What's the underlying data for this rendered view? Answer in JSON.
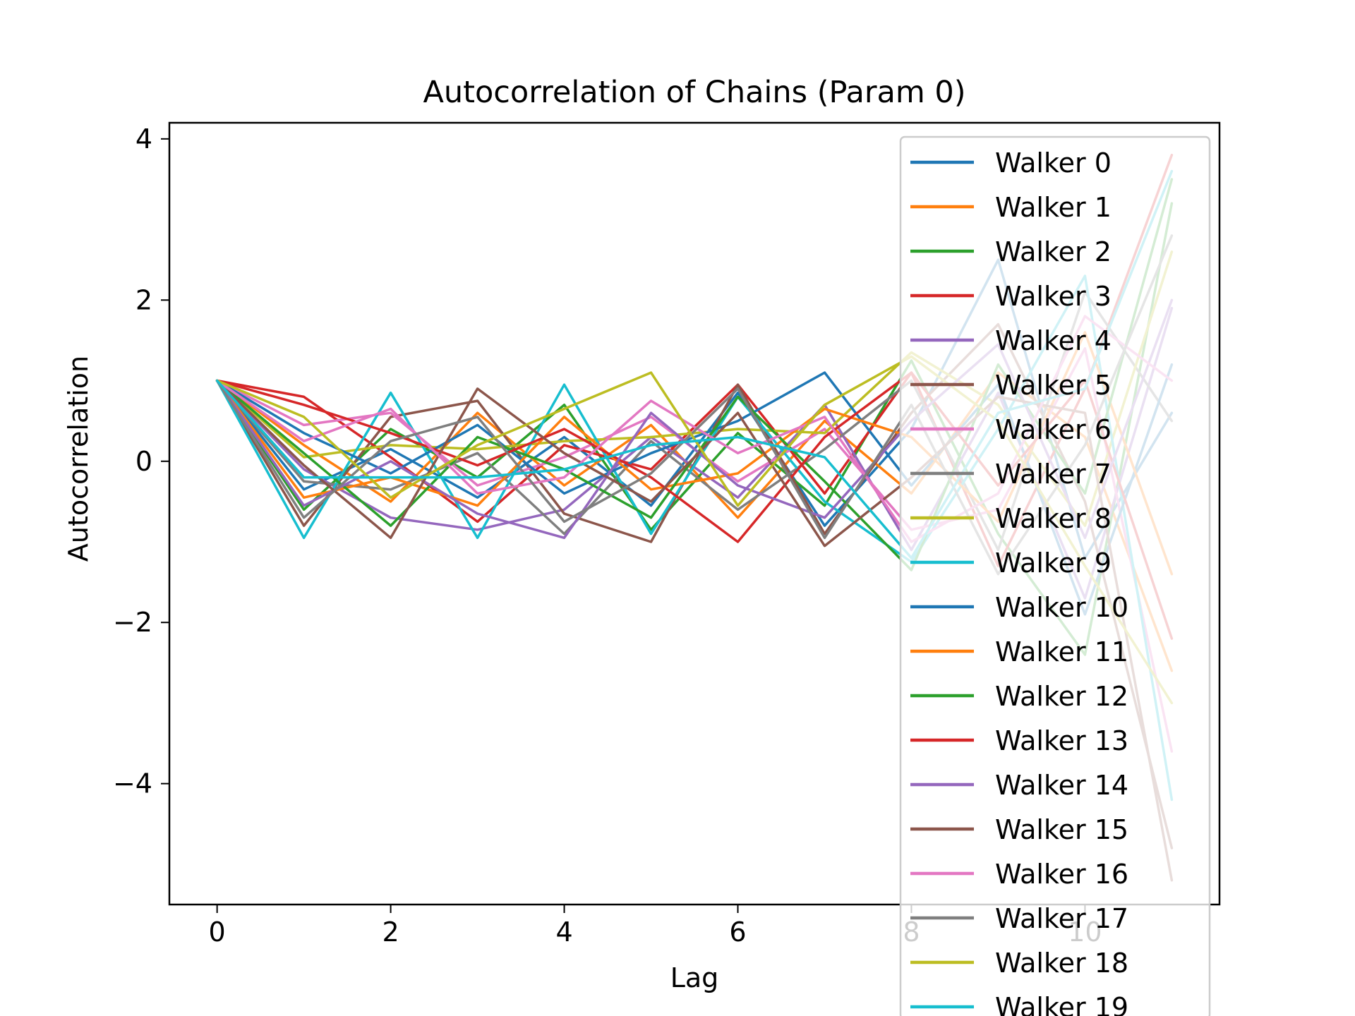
{
  "chart_data": {
    "type": "line",
    "title": "Autocorrelation of Chains (Param 0)",
    "xlabel": "Lag",
    "ylabel": "Autocorrelation",
    "xlim": [
      -0.55,
      11.55
    ],
    "ylim": [
      -5.5,
      4.2
    ],
    "x": [
      0,
      1,
      2,
      3,
      4,
      5,
      6,
      7,
      8,
      9,
      10,
      11
    ],
    "x_ticks": [
      0,
      2,
      4,
      6,
      8,
      10
    ],
    "y_ticks": [
      -4,
      -2,
      0,
      2,
      4
    ],
    "x_tick_labels": [
      "0",
      "2",
      "4",
      "6",
      "8",
      "10"
    ],
    "y_tick_labels": [
      "−4",
      "−2",
      "0",
      "2",
      "4"
    ],
    "grid": false,
    "legend_placement": "upper-right, extends below plot",
    "palette": [
      "#1f77b4",
      "#ff7f0e",
      "#2ca02c",
      "#d62728",
      "#9467bd",
      "#8c564b",
      "#e377c2",
      "#7f7f7f",
      "#bcbd22",
      "#17becf"
    ],
    "series": [
      {
        "name": "Walker 0",
        "color": "#1f77b4",
        "values": [
          1.0,
          -0.35,
          0.15,
          -0.45,
          0.3,
          -0.55,
          0.85,
          -0.8,
          0.4,
          2.5,
          -1.2,
          0.6
        ]
      },
      {
        "name": "Walker 1",
        "color": "#ff7f0e",
        "values": [
          1.0,
          0.2,
          -0.5,
          0.6,
          -0.3,
          0.45,
          -0.7,
          0.5,
          -0.4,
          1.1,
          0.3,
          -2.6
        ]
      },
      {
        "name": "Walker 2",
        "color": "#2ca02c",
        "values": [
          1.0,
          -0.6,
          0.4,
          -0.2,
          0.7,
          -0.85,
          0.35,
          -0.55,
          1.25,
          -0.9,
          -2.4,
          3.2
        ]
      },
      {
        "name": "Walker 3",
        "color": "#d62728",
        "values": [
          1.0,
          0.8,
          0.05,
          -0.75,
          0.2,
          -0.1,
          0.95,
          -0.4,
          1.1,
          -1.3,
          0.9,
          3.8
        ]
      },
      {
        "name": "Walker 4",
        "color": "#9467bd",
        "values": [
          1.0,
          -0.1,
          -0.7,
          -0.85,
          -0.6,
          0.3,
          -0.45,
          0.7,
          -1.1,
          0.85,
          -1.7,
          1.9
        ]
      },
      {
        "name": "Walker 5",
        "color": "#8c564b",
        "values": [
          1.0,
          -0.8,
          0.55,
          0.75,
          -0.65,
          -1.0,
          0.95,
          -0.9,
          0.6,
          1.7,
          -0.5,
          -4.8
        ]
      },
      {
        "name": "Walker 6",
        "color": "#e377c2",
        "values": [
          1.0,
          0.45,
          0.6,
          -0.3,
          0.05,
          0.55,
          -0.25,
          0.4,
          -0.85,
          -0.6,
          1.4,
          -3.6
        ]
      },
      {
        "name": "Walker 7",
        "color": "#7f7f7f",
        "values": [
          1.0,
          -0.25,
          -0.35,
          0.1,
          -0.9,
          0.25,
          -0.6,
          0.15,
          1.0,
          -1.1,
          2.1,
          0.5
        ]
      },
      {
        "name": "Walker 8",
        "color": "#bcbd22",
        "values": [
          1.0,
          0.05,
          0.2,
          0.15,
          0.25,
          0.3,
          0.4,
          0.35,
          1.35,
          0.7,
          -0.8,
          2.6
        ]
      },
      {
        "name": "Walker 9",
        "color": "#17becf",
        "values": [
          1.0,
          -0.95,
          0.85,
          -0.95,
          0.95,
          -0.9,
          0.8,
          -0.5,
          -1.25,
          0.4,
          2.3,
          -4.2
        ]
      },
      {
        "name": "Walker 10",
        "color": "#1f77b4",
        "values": [
          1.0,
          0.35,
          -0.15,
          0.45,
          -0.4,
          0.1,
          0.5,
          1.1,
          -0.3,
          0.95,
          -1.9,
          1.2
        ]
      },
      {
        "name": "Walker 11",
        "color": "#ff7f0e",
        "values": [
          1.0,
          -0.45,
          -0.2,
          -0.55,
          0.55,
          -0.35,
          -0.15,
          0.65,
          0.3,
          -0.75,
          1.6,
          -1.4
        ]
      },
      {
        "name": "Walker 12",
        "color": "#2ca02c",
        "values": [
          1.0,
          0.1,
          -0.8,
          0.3,
          -0.1,
          -0.7,
          0.8,
          -0.25,
          -1.35,
          1.2,
          -0.4,
          3.5
        ]
      },
      {
        "name": "Walker 13",
        "color": "#d62728",
        "values": [
          1.0,
          0.7,
          0.35,
          -0.05,
          0.4,
          -0.2,
          -1.0,
          0.3,
          1.1,
          -0.3,
          1.0,
          -2.2
        ]
      },
      {
        "name": "Walker 14",
        "color": "#9467bd",
        "values": [
          1.0,
          -0.55,
          0.0,
          -0.65,
          -0.95,
          0.6,
          -0.3,
          -0.7,
          0.5,
          1.45,
          -0.95,
          2.0
        ]
      },
      {
        "name": "Walker 15",
        "color": "#8c564b",
        "values": [
          1.0,
          -0.05,
          -0.95,
          0.9,
          0.1,
          -0.5,
          0.6,
          -1.05,
          -0.2,
          0.8,
          0.6,
          -5.2
        ]
      },
      {
        "name": "Walker 16",
        "color": "#e377c2",
        "values": [
          1.0,
          0.25,
          0.65,
          -0.4,
          -0.2,
          0.75,
          0.1,
          0.55,
          -1.0,
          -0.4,
          1.8,
          1.0
        ]
      },
      {
        "name": "Walker 17",
        "color": "#7f7f7f",
        "values": [
          1.0,
          -0.7,
          0.25,
          0.55,
          -0.75,
          -0.15,
          0.9,
          -0.95,
          0.7,
          -1.4,
          0.2,
          2.8
        ]
      },
      {
        "name": "Walker 18",
        "color": "#bcbd22",
        "values": [
          1.0,
          0.55,
          -0.45,
          0.2,
          0.65,
          1.1,
          -0.55,
          0.7,
          1.3,
          0.5,
          -1.3,
          -3.0
        ]
      },
      {
        "name": "Walker 19",
        "color": "#17becf",
        "values": [
          1.0,
          -0.2,
          -0.2,
          -0.2,
          -0.1,
          0.2,
          0.3,
          0.05,
          -1.2,
          0.6,
          0.9,
          3.6
        ]
      }
    ]
  }
}
